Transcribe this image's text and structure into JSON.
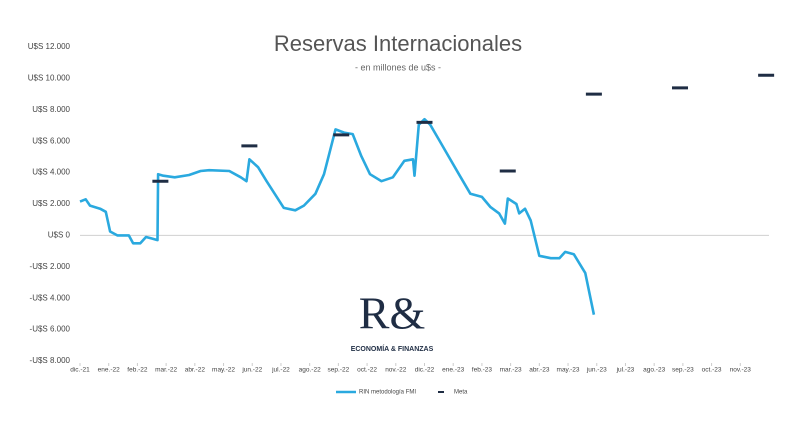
{
  "chart_data": {
    "type": "line",
    "title": "Reservas Internacionales",
    "subtitle": "- en millones de u$s -",
    "watermark": {
      "mark": "R&",
      "text": "ECONOMÍA & FINANZAS"
    },
    "xlim": [
      0,
      24
    ],
    "xticks": [
      {
        "value": 0,
        "label": "dic.-21"
      },
      {
        "value": 1,
        "label": "ene.-22"
      },
      {
        "value": 2,
        "label": "feb.-22"
      },
      {
        "value": 3,
        "label": "mar.-22"
      },
      {
        "value": 4,
        "label": "abr.-22"
      },
      {
        "value": 5,
        "label": "may.-22"
      },
      {
        "value": 6,
        "label": "jun.-22"
      },
      {
        "value": 7,
        "label": "jul.-22"
      },
      {
        "value": 8,
        "label": "ago.-22"
      },
      {
        "value": 9,
        "label": "sep.-22"
      },
      {
        "value": 10,
        "label": "oct.-22"
      },
      {
        "value": 11,
        "label": "nov.-22"
      },
      {
        "value": 12,
        "label": "dic.-22"
      },
      {
        "value": 13,
        "label": "ene.-23"
      },
      {
        "value": 14,
        "label": "feb.-23"
      },
      {
        "value": 15,
        "label": "mar.-23"
      },
      {
        "value": 16,
        "label": "abr.-23"
      },
      {
        "value": 17,
        "label": "may.-23"
      },
      {
        "value": 18,
        "label": "jun.-23"
      },
      {
        "value": 19,
        "label": "jul.-23"
      },
      {
        "value": 20,
        "label": "ago.-23"
      },
      {
        "value": 21,
        "label": "sep.-23"
      },
      {
        "value": 22,
        "label": "oct.-23"
      },
      {
        "value": 23,
        "label": "nov.-23"
      }
    ],
    "ylim": [
      -8000,
      12000
    ],
    "yticks": [
      {
        "value": 12000,
        "label": "U$S 12.000"
      },
      {
        "value": 10000,
        "label": "U$S 10.000"
      },
      {
        "value": 8000,
        "label": "U$S 8.000"
      },
      {
        "value": 6000,
        "label": "U$S 6.000"
      },
      {
        "value": 4000,
        "label": "U$S 4.000"
      },
      {
        "value": 2000,
        "label": "U$S 2.000"
      },
      {
        "value": 0,
        "label": "U$S 0"
      },
      {
        "value": -2000,
        "label": "-U$S 2.000"
      },
      {
        "value": -4000,
        "label": "-U$S 4.000"
      },
      {
        "value": -6000,
        "label": "-U$S 6.000"
      },
      {
        "value": -8000,
        "label": "-U$S 8.000"
      }
    ],
    "grid": false,
    "series": [
      {
        "name": "RIN metodología FMI",
        "color": "#2aa9df",
        "marker": "line",
        "x": [
          0,
          0.2,
          0.35,
          0.7,
          0.9,
          1.05,
          1.3,
          1.7,
          1.85,
          2.1,
          2.3,
          2.5,
          2.7,
          2.72,
          2.9,
          3.3,
          3.8,
          4.2,
          4.5,
          5.2,
          5.6,
          5.8,
          5.9,
          6.2,
          6.5,
          6.8,
          7.1,
          7.5,
          7.8,
          8.2,
          8.5,
          8.9,
          9.2,
          9.5,
          9.8,
          10.1,
          10.5,
          10.9,
          11.3,
          11.6,
          11.65,
          11.8,
          12.0,
          12.2,
          12.5,
          12.8,
          13.2,
          13.6,
          14.0,
          14.3,
          14.6,
          14.8,
          14.9,
          15.2,
          15.3,
          15.5,
          15.7,
          16.0,
          16.4,
          16.7,
          16.9,
          17.2,
          17.6,
          17.9
        ],
        "values": [
          2150,
          2300,
          1900,
          1700,
          1500,
          250,
          0,
          0,
          -500,
          -500,
          -100,
          -200,
          -300,
          3900,
          3800,
          3700,
          3850,
          4100,
          4150,
          4100,
          3700,
          3450,
          4850,
          4350,
          3450,
          2600,
          1750,
          1600,
          1900,
          2650,
          3900,
          6750,
          6550,
          6450,
          5050,
          3900,
          3450,
          3700,
          4750,
          4850,
          3800,
          7050,
          7400,
          7050,
          6100,
          5150,
          3900,
          2650,
          2450,
          1800,
          1400,
          750,
          2350,
          2000,
          1400,
          1700,
          950,
          -1300,
          -1450,
          -1450,
          -1050,
          -1200,
          -2400,
          -5050
        ]
      },
      {
        "name": "Meta",
        "color": "#1f2d44",
        "marker": "dash",
        "x": [
          2.8,
          5.9,
          9.1,
          12.0,
          14.9,
          17.9,
          20.9,
          23.9
        ],
        "values": [
          3450,
          5700,
          6400,
          7200,
          4100,
          9000,
          9400,
          10200
        ]
      }
    ]
  }
}
